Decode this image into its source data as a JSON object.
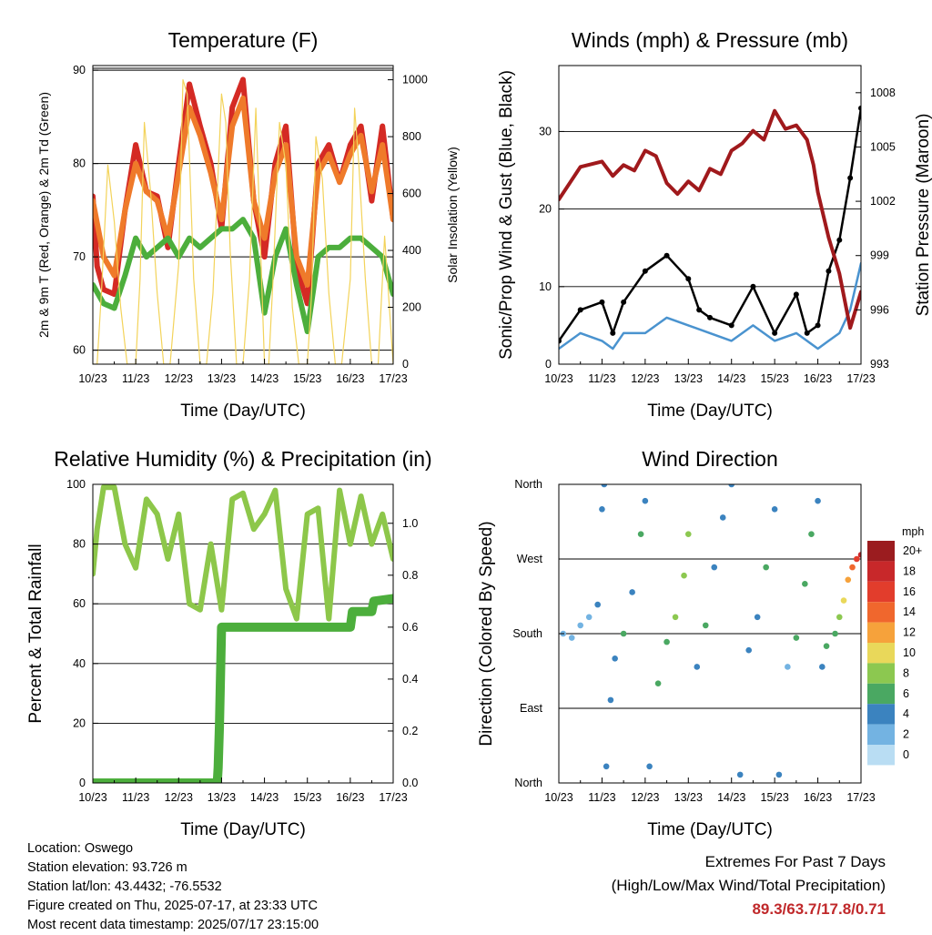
{
  "chart_data": [
    {
      "type": "line",
      "title": "Temperature (F)",
      "xlabel": "Time (Day/UTC)",
      "ylabel_left": "2m & 9m T (Red, Orange) & 2m Td (Green)",
      "ylabel_right": "Solar Insolation (Yellow)",
      "x_ticks": [
        "10/23",
        "11/23",
        "12/23",
        "13/23",
        "14/23",
        "15/23",
        "16/23",
        "17/23"
      ],
      "ylim": [
        58.5,
        90.5
      ],
      "y_ticks": [
        "60",
        "70",
        "80",
        "90"
      ],
      "y2lim": [
        0,
        1050
      ],
      "y2_ticks": [
        "0",
        "200",
        "400",
        "600",
        "800",
        "1000"
      ],
      "series": [
        {
          "name": "2m T",
          "color": "#d42a24",
          "x": [
            0,
            0.1,
            0.25,
            0.5,
            0.75,
            1,
            1.25,
            1.5,
            1.75,
            2,
            2.25,
            2.5,
            2.75,
            3,
            3.25,
            3.5,
            3.75,
            4,
            4.25,
            4.5,
            4.75,
            5,
            5.25,
            5.5,
            5.75,
            6,
            6.25,
            6.5,
            6.75,
            7
          ],
          "values": [
            76.5,
            69,
            66.5,
            66,
            75,
            82,
            77,
            76.5,
            71,
            80,
            88.5,
            84,
            80,
            73,
            86,
            89,
            76,
            70,
            80,
            84,
            69,
            65,
            80,
            82,
            78,
            82,
            84,
            76,
            84,
            74
          ]
        },
        {
          "name": "9m T",
          "color": "#ef7a2a",
          "x": [
            0,
            0.25,
            0.5,
            0.75,
            1,
            1.25,
            1.5,
            1.75,
            2,
            2.25,
            2.5,
            2.75,
            3,
            3.25,
            3.5,
            3.75,
            4,
            4.25,
            4.5,
            4.75,
            5,
            5.25,
            5.5,
            5.75,
            6,
            6.25,
            6.5,
            6.75,
            7
          ],
          "values": [
            76,
            70,
            68,
            75,
            80,
            77,
            76,
            72,
            79,
            86,
            83,
            79,
            74,
            84,
            87,
            76,
            72,
            79,
            82,
            70,
            67,
            79,
            81,
            78,
            81,
            83,
            77,
            82,
            74
          ]
        },
        {
          "name": "2m Td",
          "color": "#4cae3c",
          "x": [
            0,
            0.25,
            0.5,
            0.75,
            1,
            1.25,
            1.5,
            1.75,
            2,
            2.25,
            2.5,
            2.75,
            3,
            3.25,
            3.5,
            3.75,
            4,
            4.25,
            4.5,
            4.75,
            5,
            5.25,
            5.5,
            5.75,
            6,
            6.25,
            6.5,
            6.75,
            7
          ],
          "values": [
            67,
            65,
            64.5,
            68,
            72,
            70,
            71,
            72,
            70,
            72,
            71,
            72,
            73,
            73,
            74,
            72,
            64,
            70,
            73,
            67,
            62,
            70,
            71,
            71,
            72,
            72,
            71,
            70,
            66
          ]
        },
        {
          "name": "Solar Insolation",
          "color": "#f3d35a",
          "axis": "right",
          "x": [
            0,
            0.1,
            0.2,
            0.35,
            0.5,
            0.65,
            0.8,
            1,
            1.1,
            1.2,
            1.35,
            1.5,
            1.65,
            1.8,
            2,
            2.1,
            2.2,
            2.35,
            2.5,
            2.65,
            2.8,
            3,
            3.1,
            3.2,
            3.35,
            3.5,
            3.65,
            3.8,
            4,
            4.1,
            4.2,
            4.35,
            4.5,
            4.65,
            4.8,
            5,
            5.1,
            5.2,
            5.35,
            5.5,
            5.65,
            5.8,
            6,
            6.1,
            6.2,
            6.35,
            6.5,
            6.65,
            6.8,
            7
          ],
          "values": [
            0,
            0,
            250,
            700,
            500,
            200,
            0,
            0,
            300,
            850,
            600,
            250,
            0,
            0,
            350,
            1000,
            950,
            300,
            0,
            0,
            250,
            950,
            850,
            400,
            0,
            0,
            300,
            900,
            0,
            0,
            300,
            850,
            700,
            200,
            0,
            0,
            250,
            800,
            650,
            250,
            0,
            0,
            300,
            900,
            700,
            300,
            0,
            0,
            450,
            0
          ]
        }
      ]
    },
    {
      "type": "line",
      "title": "Winds (mph) & Pressure (mb)",
      "xlabel": "Time (Day/UTC)",
      "ylabel_left": "Sonic/Prop Wind & Gust (Blue, Black)",
      "ylabel_right": "Station Pressure (Maroon)",
      "x_ticks": [
        "10/23",
        "11/23",
        "12/23",
        "13/23",
        "14/23",
        "15/23",
        "16/23",
        "17/23"
      ],
      "ylim": [
        0,
        38.5
      ],
      "y_ticks": [
        "0",
        "10",
        "20",
        "30"
      ],
      "y2lim": [
        993,
        1009.5
      ],
      "y2_ticks": [
        "993",
        "996",
        "999",
        "1002",
        "1005",
        "1008"
      ],
      "series": [
        {
          "name": "Wind",
          "color": "#4a93cf",
          "x": [
            0,
            0.5,
            1,
            1.25,
            1.5,
            2,
            2.5,
            3,
            3.5,
            4,
            4.5,
            5,
            5.5,
            5.75,
            6,
            6.25,
            6.5,
            6.75,
            7
          ],
          "values": [
            2,
            4,
            3,
            2,
            4,
            4,
            6,
            5,
            4,
            3,
            5,
            3,
            4,
            3,
            2,
            3,
            4,
            7,
            13
          ]
        },
        {
          "name": "Gust",
          "color": "#000000",
          "axis": "left",
          "x": [
            0,
            0.5,
            1,
            1.25,
            1.5,
            2,
            2.5,
            3,
            3.25,
            3.5,
            4,
            4.5,
            5,
            5.5,
            5.75,
            6,
            6.25,
            6.5,
            6.75,
            7
          ],
          "values": [
            3,
            7,
            8,
            4,
            8,
            12,
            14,
            11,
            7,
            6,
            5,
            10,
            4,
            9,
            4,
            5,
            12,
            16,
            24,
            33
          ]
        },
        {
          "name": "Pressure",
          "color": "#a0191c",
          "axis": "right",
          "x": [
            0,
            0.25,
            0.5,
            1,
            1.25,
            1.5,
            1.75,
            2,
            2.25,
            2.5,
            2.75,
            3,
            3.25,
            3.5,
            3.75,
            4,
            4.25,
            4.5,
            4.75,
            5,
            5.25,
            5.5,
            5.75,
            5.9,
            6,
            6.25,
            6.5,
            6.75,
            7
          ],
          "values": [
            1002.1,
            1003,
            1003.9,
            1004.2,
            1003.4,
            1004,
            1003.7,
            1004.8,
            1004.5,
            1003,
            1002.4,
            1003.1,
            1002.6,
            1003.8,
            1003.5,
            1004.8,
            1005.2,
            1005.9,
            1005.4,
            1007,
            1006,
            1006.2,
            1005.4,
            1004,
            1002.5,
            1000,
            998,
            995,
            997
          ]
        }
      ]
    },
    {
      "type": "line",
      "title": "Relative Humidity (%) & Precipitation (in)",
      "xlabel": "Time (Day/UTC)",
      "ylabel_left": "Percent & Total Rainfall",
      "x_ticks": [
        "10/23",
        "11/23",
        "12/23",
        "13/23",
        "14/23",
        "15/23",
        "16/23",
        "17/23"
      ],
      "ylim": [
        0,
        100
      ],
      "y_ticks": [
        "0",
        "20",
        "40",
        "60",
        "80",
        "100"
      ],
      "y2lim": [
        0,
        1.15
      ],
      "y2_ticks": [
        "0.0",
        "0.2",
        "0.4",
        "0.6",
        "0.8",
        "1.0"
      ],
      "series": [
        {
          "name": "Relative Humidity",
          "color": "#8dc74a",
          "x": [
            0,
            0.1,
            0.25,
            0.5,
            0.75,
            1,
            1.25,
            1.5,
            1.75,
            2,
            2.25,
            2.5,
            2.75,
            3,
            3.25,
            3.5,
            3.75,
            4,
            4.25,
            4.5,
            4.75,
            5,
            5.25,
            5.5,
            5.75,
            6,
            6.25,
            6.5,
            6.75,
            7
          ],
          "values": [
            70,
            85,
            99,
            99,
            80,
            72,
            95,
            90,
            75,
            90,
            60,
            58,
            80,
            58,
            95,
            97,
            85,
            90,
            98,
            65,
            55,
            90,
            92,
            55,
            98,
            80,
            96,
            80,
            90,
            75
          ]
        },
        {
          "name": "Total Precipitation",
          "color": "#4cae3c",
          "axis": "right",
          "x": [
            0,
            2.9,
            2.92,
            2.95,
            3,
            3.05,
            6,
            6.05,
            6.5,
            6.55,
            7
          ],
          "values": [
            0,
            0,
            0.06,
            0.22,
            0.6,
            0.6,
            0.6,
            0.66,
            0.66,
            0.7,
            0.71
          ]
        }
      ]
    },
    {
      "type": "scatter",
      "title": "Wind Direction",
      "xlabel": "Time (Day/UTC)",
      "ylabel": "Direction (Colored By Speed)",
      "x_ticks": [
        "10/23",
        "11/23",
        "12/23",
        "13/23",
        "14/23",
        "15/23",
        "16/23",
        "17/23"
      ],
      "y_ticks": [
        "North",
        "East",
        "South",
        "West",
        "North"
      ],
      "ylim": [
        0,
        360
      ],
      "legend_title": "mph",
      "legend_labels": [
        "20+",
        "18",
        "16",
        "14",
        "12",
        "10",
        "8",
        "6",
        "4",
        "2",
        "0"
      ],
      "legend_colors": [
        "#9b1c1f",
        "#c8282a",
        "#e23d2c",
        "#f0672d",
        "#f6a23b",
        "#e9d85a",
        "#8cc850",
        "#4aa862",
        "#3b83bf",
        "#73b3e2",
        "#b9ddf3"
      ],
      "points": [
        [
          0.1,
          180,
          1
        ],
        [
          0.3,
          175,
          2
        ],
        [
          0.5,
          190,
          2
        ],
        [
          0.7,
          200,
          1
        ],
        [
          0.9,
          215,
          3
        ],
        [
          1.0,
          330,
          4
        ],
        [
          1.05,
          360,
          4
        ],
        [
          1.1,
          20,
          3
        ],
        [
          1.2,
          100,
          4
        ],
        [
          1.3,
          150,
          3
        ],
        [
          1.5,
          180,
          5
        ],
        [
          1.7,
          230,
          4
        ],
        [
          1.9,
          300,
          5
        ],
        [
          2.0,
          340,
          4
        ],
        [
          2.1,
          20,
          3
        ],
        [
          2.3,
          120,
          5
        ],
        [
          2.5,
          170,
          6
        ],
        [
          2.7,
          200,
          7
        ],
        [
          2.9,
          250,
          8
        ],
        [
          3.0,
          300,
          7
        ],
        [
          3.2,
          140,
          4
        ],
        [
          3.4,
          190,
          5
        ],
        [
          3.6,
          260,
          4
        ],
        [
          3.8,
          320,
          4
        ],
        [
          4.0,
          360,
          4
        ],
        [
          4.2,
          10,
          3
        ],
        [
          4.4,
          160,
          3
        ],
        [
          4.6,
          200,
          4
        ],
        [
          4.8,
          260,
          5
        ],
        [
          5.0,
          330,
          4
        ],
        [
          5.1,
          10,
          3
        ],
        [
          5.3,
          140,
          2
        ],
        [
          5.5,
          175,
          5
        ],
        [
          5.7,
          240,
          5
        ],
        [
          5.85,
          300,
          5
        ],
        [
          6.0,
          340,
          4
        ],
        [
          6.1,
          140,
          4
        ],
        [
          6.2,
          165,
          6
        ],
        [
          6.4,
          180,
          5
        ],
        [
          6.5,
          200,
          7
        ],
        [
          6.6,
          220,
          10
        ],
        [
          6.7,
          245,
          12
        ],
        [
          6.8,
          260,
          14
        ],
        [
          6.9,
          270,
          16
        ],
        [
          7.0,
          275,
          17
        ]
      ]
    }
  ],
  "info": {
    "location": "Location: Oswego",
    "elevation": "Station elevation: 93.726 m",
    "latlon": "Station lat/lon: 43.4432; -76.5532",
    "created": "Figure created on Thu, 2025-07-17, at 23:33 UTC",
    "timestamp": "Most recent data timestamp: 2025/07/17 23:15:00"
  },
  "extremes": {
    "line1": "Extremes For Past 7 Days",
    "line2": "(High/Low/Max Wind/Total Precipitation)",
    "values": "89.3/63.7/17.8/0.71",
    "color": "#c0282a"
  }
}
